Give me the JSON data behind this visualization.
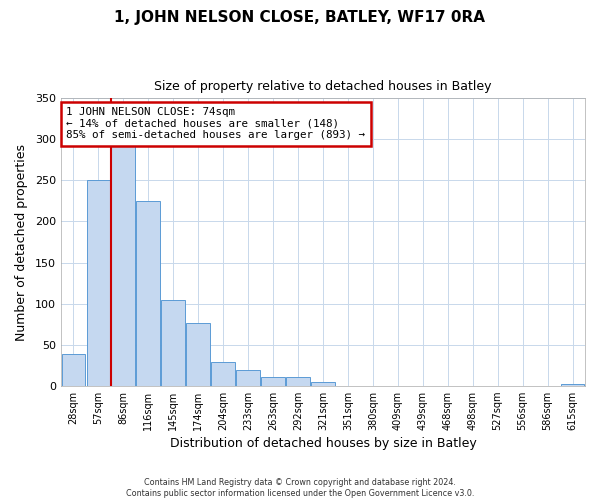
{
  "title": "1, JOHN NELSON CLOSE, BATLEY, WF17 0RA",
  "subtitle": "Size of property relative to detached houses in Batley",
  "xlabel": "Distribution of detached houses by size in Batley",
  "ylabel": "Number of detached properties",
  "categories": [
    "28sqm",
    "57sqm",
    "86sqm",
    "116sqm",
    "145sqm",
    "174sqm",
    "204sqm",
    "233sqm",
    "263sqm",
    "292sqm",
    "321sqm",
    "351sqm",
    "380sqm",
    "409sqm",
    "439sqm",
    "468sqm",
    "498sqm",
    "527sqm",
    "556sqm",
    "586sqm",
    "615sqm"
  ],
  "values": [
    38,
    250,
    293,
    225,
    104,
    76,
    29,
    19,
    11,
    10,
    5,
    0,
    0,
    0,
    0,
    0,
    0,
    0,
    0,
    0,
    2
  ],
  "bar_color": "#c5d8f0",
  "bar_edge_color": "#5b9bd5",
  "marker_bin_index": 1,
  "marker_color": "#cc0000",
  "annotation_text": "1 JOHN NELSON CLOSE: 74sqm\n← 14% of detached houses are smaller (148)\n85% of semi-detached houses are larger (893) →",
  "annotation_box_color": "#ffffff",
  "annotation_box_edge_color": "#cc0000",
  "ylim": [
    0,
    350
  ],
  "yticks": [
    0,
    50,
    100,
    150,
    200,
    250,
    300,
    350
  ],
  "footer_line1": "Contains HM Land Registry data © Crown copyright and database right 2024.",
  "footer_line2": "Contains public sector information licensed under the Open Government Licence v3.0.",
  "background_color": "#ffffff",
  "grid_color": "#c8d8eb"
}
